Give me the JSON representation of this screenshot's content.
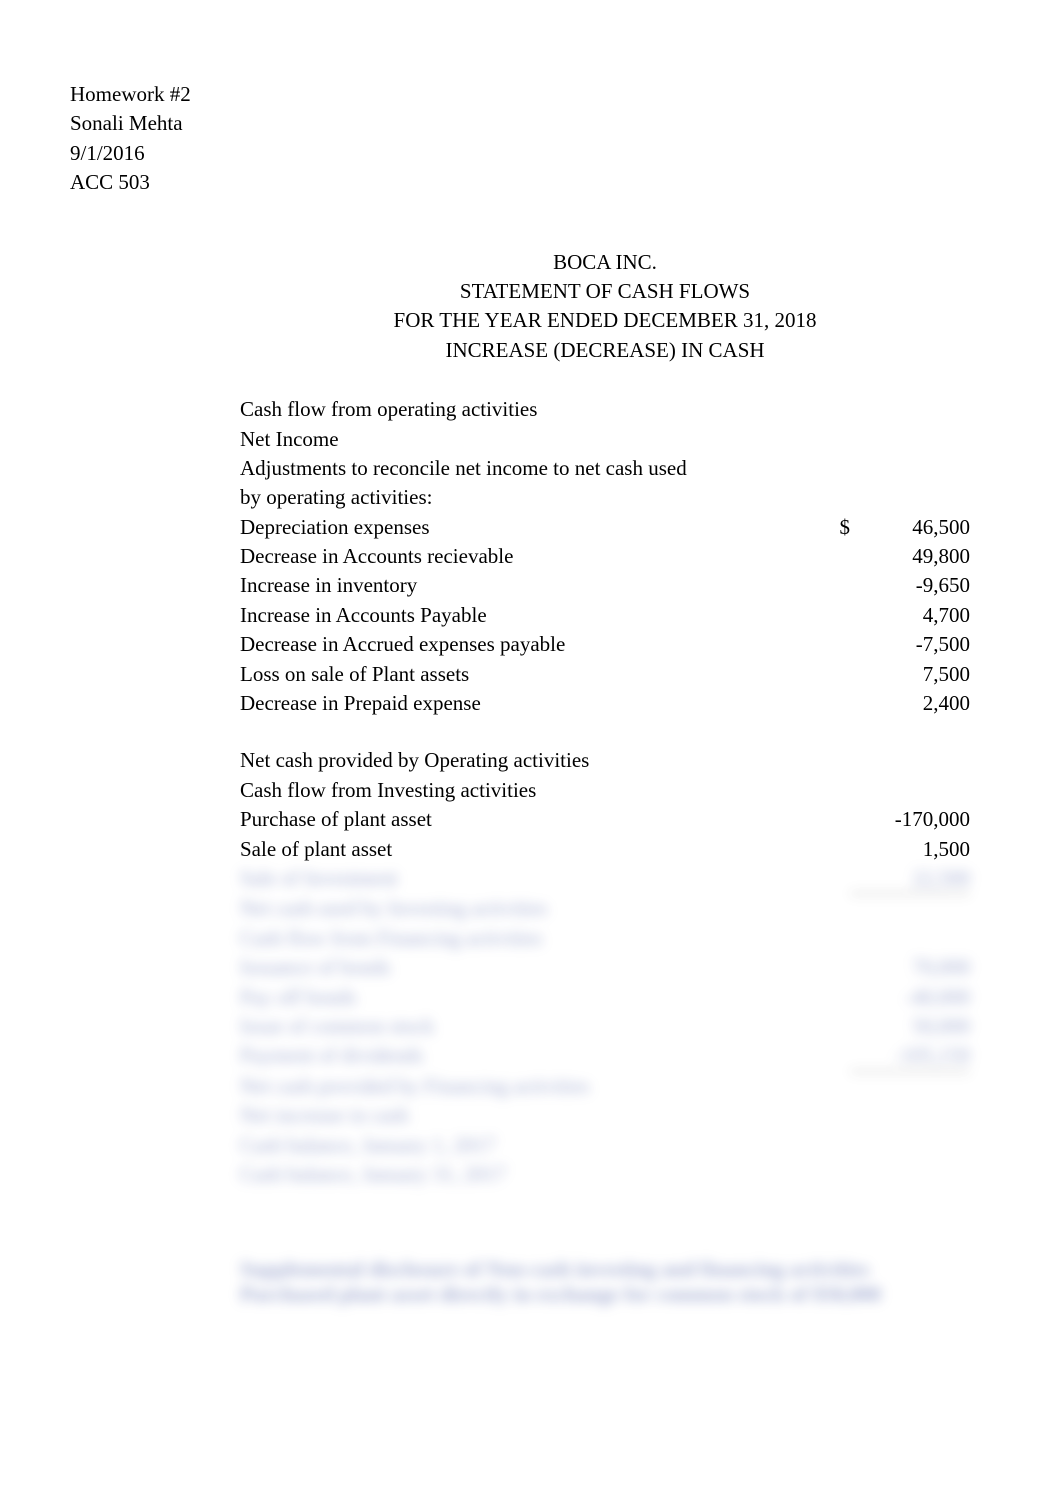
{
  "header": {
    "line1": "Homework #2",
    "line2": "Sonali Mehta",
    "line3": "9/1/2016",
    "line4": "ACC 503"
  },
  "title": {
    "company": "BOCA INC.",
    "statement": "STATEMENT OF CASH FLOWS",
    "period": "FOR THE YEAR ENDED DECEMBER 31, 2018",
    "subtitle": "INCREASE (DECREASE) IN CASH"
  },
  "rows": [
    {
      "label": "Cash flow from operating activities",
      "currency": "",
      "amount": ""
    },
    {
      "label": "Net Income",
      "currency": "",
      "amount": ""
    },
    {
      "label": "Adjustments to reconcile net income to net cash used",
      "currency": "",
      "amount": ""
    },
    {
      "label": "by operating activities:",
      "currency": "",
      "amount": ""
    },
    {
      "label": "Depreciation expenses",
      "currency": "$",
      "amount": "46,500"
    },
    {
      "label": "Decrease in Accounts recievable",
      "currency": "",
      "amount": "49,800"
    },
    {
      "label": "Increase in inventory",
      "currency": "",
      "amount": "-9,650"
    },
    {
      "label": "Increase in Accounts Payable",
      "currency": "",
      "amount": "4,700"
    },
    {
      "label": "Decrease in Accrued expenses payable",
      "currency": "",
      "amount": "-7,500"
    },
    {
      "label": "Loss on sale of Plant assets",
      "currency": "",
      "amount": "7,500"
    },
    {
      "label": "Decrease in Prepaid expense",
      "currency": "",
      "amount": "2,400"
    }
  ],
  "rows2": [
    {
      "label": "Net cash provided by Operating activities",
      "currency": "",
      "amount": ""
    },
    {
      "label": "Cash flow from Investing activities",
      "currency": "",
      "amount": ""
    },
    {
      "label": "Purchase of plant asset",
      "currency": "",
      "amount": "-170,000"
    },
    {
      "label": "Sale of plant asset",
      "currency": "",
      "amount": "1,500"
    }
  ],
  "blurred": [
    {
      "label": "Sale of Investment",
      "amount": "22,500",
      "underline": true
    },
    {
      "label": "Net cash used by Investing activities",
      "amount": ""
    },
    {
      "label": "Cash flow from Financing activities",
      "amount": ""
    },
    {
      "label": "Issuance of bonds",
      "amount": "70,000"
    },
    {
      "label": "Pay off bonds",
      "amount": "-40,000"
    },
    {
      "label": "Issue of common stock",
      "amount": "50,000"
    },
    {
      "label": "Payment of dividends",
      "amount": "-105,150",
      "underline": true
    },
    {
      "label": "Net cash provided by Financing activities",
      "amount": ""
    },
    {
      "label": "Net increase in cash",
      "amount": ""
    },
    {
      "label": "Cash balance, January 1, 2017",
      "amount": ""
    },
    {
      "label": "Cash balance, January 31, 2017",
      "amount": ""
    }
  ],
  "footer": {
    "line1": "Supplemental disclosure of Non-cash investing and financing activities",
    "line2": "Purchased plant asset directly in exchange for common stock of $50,000"
  }
}
